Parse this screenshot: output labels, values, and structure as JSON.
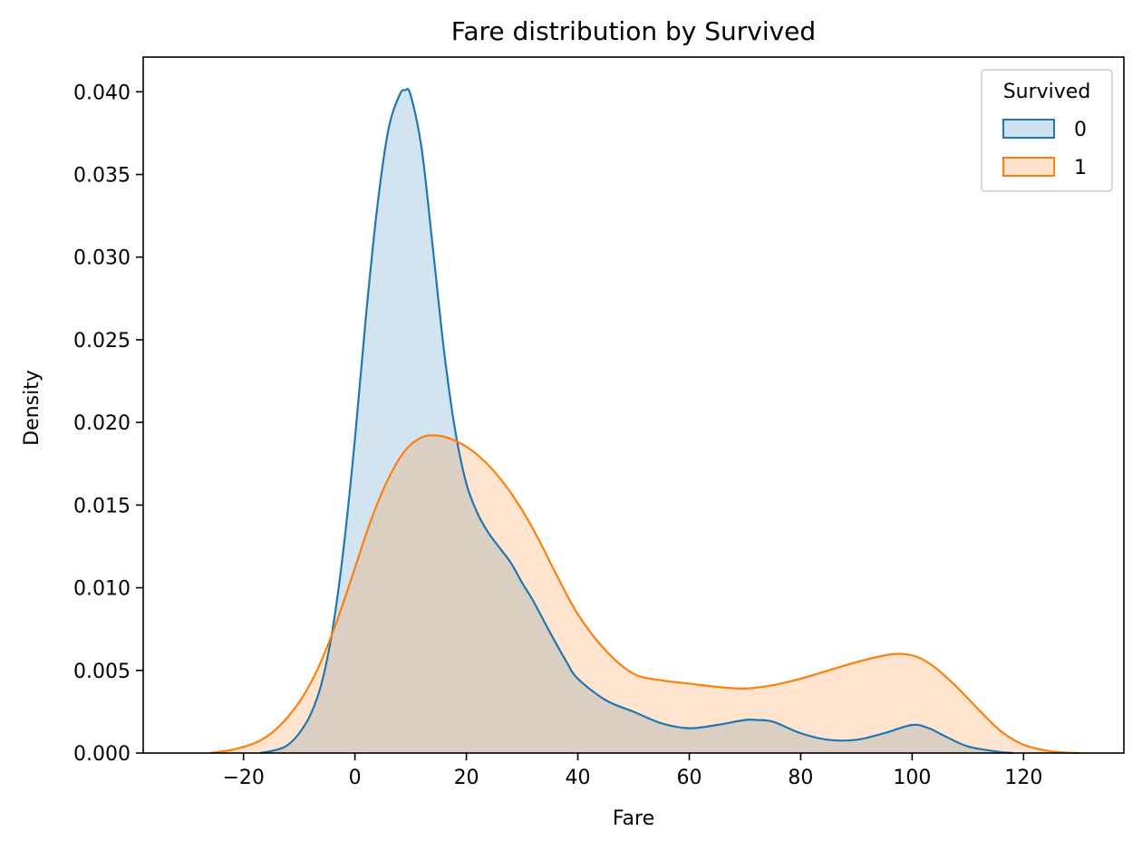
{
  "chart_data": {
    "type": "area",
    "title": "Fare distribution by Survived",
    "xlabel": "Fare",
    "ylabel": "Density",
    "xlim": [
      -38,
      138
    ],
    "ylim": [
      0,
      0.0421
    ],
    "xticks": [
      -20,
      0,
      20,
      40,
      60,
      80,
      100,
      120
    ],
    "xtick_labels": [
      "−20",
      "0",
      "20",
      "40",
      "60",
      "80",
      "100",
      "120"
    ],
    "yticks": [
      0,
      0.005,
      0.01,
      0.015,
      0.02,
      0.025,
      0.03,
      0.035,
      0.04
    ],
    "ytick_labels": [
      "0.000",
      "0.005",
      "0.010",
      "0.015",
      "0.020",
      "0.025",
      "0.030",
      "0.035",
      "0.040"
    ],
    "grid": false,
    "legend": {
      "title": "Survived",
      "placement": "top-right",
      "entries": [
        "0",
        "1"
      ]
    },
    "series": [
      {
        "name": "0",
        "color": "#1f77b4",
        "fill": "#cfe0ee",
        "x": [
          -17,
          -14,
          -12,
          -10,
          -8,
          -6,
          -4,
          -2,
          0,
          2,
          4,
          6,
          8,
          9,
          10,
          12,
          14,
          16,
          18,
          20,
          22,
          24,
          26,
          28,
          30,
          32,
          35,
          38,
          40,
          45,
          50,
          55,
          60,
          65,
          70,
          72,
          75,
          80,
          85,
          90,
          95,
          100,
          103,
          106,
          110,
          115,
          118
        ],
        "values": [
          0.0,
          0.0002,
          0.0005,
          0.0012,
          0.0023,
          0.0042,
          0.0075,
          0.0125,
          0.019,
          0.0265,
          0.033,
          0.0377,
          0.0398,
          0.0401,
          0.0398,
          0.0365,
          0.0305,
          0.0243,
          0.0195,
          0.0163,
          0.0145,
          0.0133,
          0.0124,
          0.0115,
          0.0103,
          0.0092,
          0.0073,
          0.0055,
          0.0045,
          0.0032,
          0.0025,
          0.0018,
          0.0015,
          0.0017,
          0.002,
          0.002,
          0.0019,
          0.0012,
          0.0008,
          0.0008,
          0.0012,
          0.0017,
          0.0015,
          0.001,
          0.0004,
          0.0001,
          0.0
        ]
      },
      {
        "name": "1",
        "color": "#ff7f0e",
        "fill": "#fde3cb",
        "x": [
          -26,
          -22,
          -18,
          -15,
          -12,
          -9,
          -6,
          -3,
          0,
          3,
          6,
          9,
          12,
          15,
          18,
          21,
          24,
          27,
          30,
          33,
          36,
          40,
          45,
          50,
          55,
          60,
          65,
          70,
          75,
          80,
          85,
          90,
          95,
          98,
          101,
          104,
          108,
          112,
          116,
          120,
          125,
          130
        ],
        "values": [
          0.0,
          0.0002,
          0.0006,
          0.0012,
          0.0022,
          0.0036,
          0.0056,
          0.0082,
          0.0112,
          0.0142,
          0.0166,
          0.0183,
          0.0191,
          0.0192,
          0.0189,
          0.0183,
          0.0174,
          0.0162,
          0.0147,
          0.0129,
          0.0109,
          0.0084,
          0.0062,
          0.0048,
          0.0044,
          0.0042,
          0.004,
          0.0039,
          0.0041,
          0.0045,
          0.005,
          0.0055,
          0.0059,
          0.006,
          0.0058,
          0.0052,
          0.004,
          0.0026,
          0.0013,
          0.0005,
          0.0001,
          0.0
        ]
      }
    ]
  }
}
